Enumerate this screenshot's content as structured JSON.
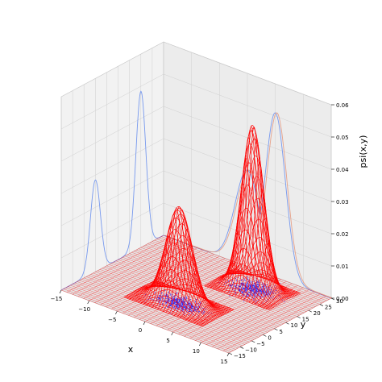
{
  "chart_data": {
    "type": "surface3d",
    "title": "",
    "xlabel": "x",
    "ylabel": "y",
    "zlabel": "psi(x,y)",
    "xlim": [
      -15,
      15
    ],
    "ylim": [
      -15,
      30
    ],
    "zlim": [
      0.0,
      0.06
    ],
    "x_ticks": [
      "−15",
      "−10",
      "−5",
      "0",
      "5",
      "10",
      "15"
    ],
    "y_ticks": [
      "−15",
      "−10",
      "−5",
      "0",
      "5",
      "10",
      "15",
      "20",
      "25",
      "30"
    ],
    "z_ticks": [
      "0.00",
      "0.01",
      "0.02",
      "0.03",
      "0.04",
      "0.05",
      "0.06"
    ],
    "grid": true,
    "surface": {
      "type": "wireframe",
      "color": "#ff0000",
      "gaussians": [
        {
          "mu_x": 0,
          "mu_y": 0,
          "sigma_x": 2.2,
          "sigma_y": 2.2,
          "peak": 0.03
        },
        {
          "mu_x": 5,
          "mu_y": 20,
          "sigma_x": 1.8,
          "sigma_y": 2.2,
          "peak": 0.051
        }
      ]
    },
    "scatter": {
      "color": "#1a1aff",
      "clusters": [
        {
          "mu_x": 0,
          "mu_y": 0,
          "sigma": 2.0,
          "n": 600
        },
        {
          "mu_x": 5,
          "mu_y": 20,
          "sigma_x": 1.8,
          "sigma_y": 2.5,
          "n": 600
        }
      ]
    },
    "projections": [
      {
        "plane": "x-wall",
        "color": "#7799ee",
        "description": "marginal along y"
      },
      {
        "plane": "y-wall",
        "color": "#7799ee",
        "description": "marginal along x"
      },
      {
        "plane": "y-wall",
        "color": "#e69a80",
        "description": "true marginal"
      }
    ]
  }
}
